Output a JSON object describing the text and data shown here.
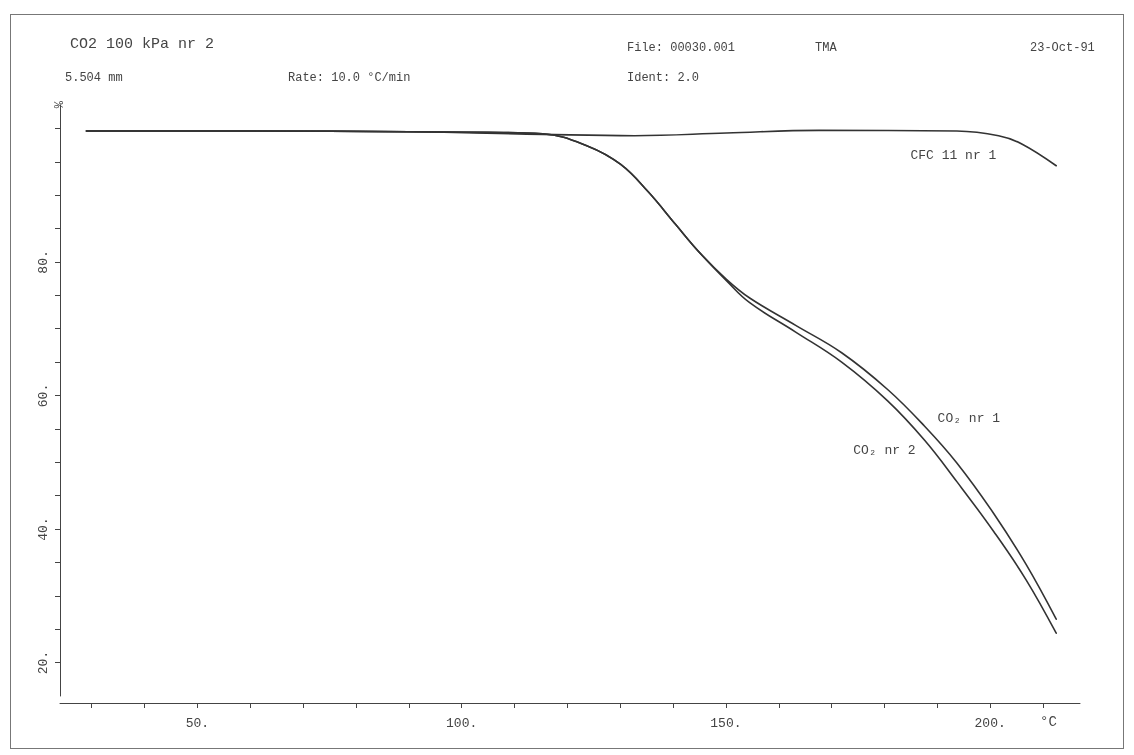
{
  "chart_data": {
    "type": "line",
    "title": "CO2 100 kPa nr 2",
    "xlabel": "°C",
    "ylabel": "%",
    "annotations": [
      "5.504 mm",
      "Rate: 10.0 °C/min",
      "File: 00030.001",
      "Ident: 2.0",
      "TMA",
      "23-Oct-91"
    ],
    "xlim": [
      24,
      217
    ],
    "xticks": [
      {
        "value": 30,
        "label": null
      },
      {
        "value": 40,
        "label": null
      },
      {
        "value": 50,
        "label": "50."
      },
      {
        "value": 60,
        "label": null
      },
      {
        "value": 70,
        "label": null
      },
      {
        "value": 80,
        "label": null
      },
      {
        "value": 90,
        "label": null
      },
      {
        "value": 100,
        "label": "100."
      },
      {
        "value": 110,
        "label": null
      },
      {
        "value": 120,
        "label": null
      },
      {
        "value": 130,
        "label": null
      },
      {
        "value": 140,
        "label": null
      },
      {
        "value": 150,
        "label": "150."
      },
      {
        "value": 160,
        "label": null
      },
      {
        "value": 170,
        "label": null
      },
      {
        "value": 180,
        "label": null
      },
      {
        "value": 190,
        "label": null
      },
      {
        "value": 200,
        "label": "200."
      },
      {
        "value": 210,
        "label": null
      }
    ],
    "ylim": [
      15,
      103.5
    ],
    "yticks": [
      {
        "value": 20,
        "label": "20."
      },
      {
        "value": 25,
        "label": null
      },
      {
        "value": 30,
        "label": null
      },
      {
        "value": 35,
        "label": null
      },
      {
        "value": 40,
        "label": "40."
      },
      {
        "value": 45,
        "label": null
      },
      {
        "value": 50,
        "label": null
      },
      {
        "value": 55,
        "label": null
      },
      {
        "value": 60,
        "label": "60."
      },
      {
        "value": 65,
        "label": null
      },
      {
        "value": 70,
        "label": null
      },
      {
        "value": 75,
        "label": null
      },
      {
        "value": 80,
        "label": "80."
      },
      {
        "value": 85,
        "label": null
      },
      {
        "value": 90,
        "label": null
      },
      {
        "value": 95,
        "label": null
      },
      {
        "value": 100,
        "label": null
      }
    ],
    "grid": false,
    "legend": false,
    "marker": "none",
    "line_style": "solid",
    "series": [
      {
        "name": "CFC 11 nr 1",
        "color": "#333333",
        "x": [
          29,
          60,
          90,
          115.3,
          132.7,
          150.1,
          167.6,
          193.7,
          201.6,
          205.9,
          212.5
        ],
        "values": [
          99.6,
          99.6,
          99.5,
          99.1,
          98.9,
          99.3,
          99.7,
          99.6,
          98.9,
          97.7,
          94.4
        ]
      },
      {
        "name": "CO₂ nr 1",
        "color": "#333333",
        "x": [
          29,
          60,
          90,
          105,
          115.3,
          124,
          130.1,
          135.3,
          140.5,
          144.9,
          150.1,
          154.5,
          163.2,
          171.9,
          180.6,
          187.6,
          193.7,
          200.7,
          206.8,
          212.5
        ],
        "values": [
          99.6,
          99.6,
          99.5,
          99.4,
          99.2,
          97.3,
          94.6,
          90.5,
          85.6,
          81.5,
          77.4,
          74.6,
          70.5,
          66.4,
          60.9,
          55.4,
          49.9,
          42.3,
          34.7,
          26.5
        ]
      },
      {
        "name": "CO₂ nr 2",
        "color": "#333333",
        "x": [
          29,
          60,
          90,
          105,
          115.3,
          124,
          130.1,
          135.3,
          140.5,
          144.9,
          150.1,
          154.5,
          163.2,
          171.9,
          180.6,
          187.6,
          193.7,
          200.7,
          206.8,
          212.5
        ],
        "values": [
          99.6,
          99.6,
          99.5,
          99.4,
          99.2,
          97.3,
          94.6,
          90.5,
          85.6,
          81.5,
          77.2,
          73.9,
          69.5,
          65.0,
          59.2,
          53.3,
          47.1,
          39.6,
          32.4,
          24.4
        ]
      }
    ]
  }
}
